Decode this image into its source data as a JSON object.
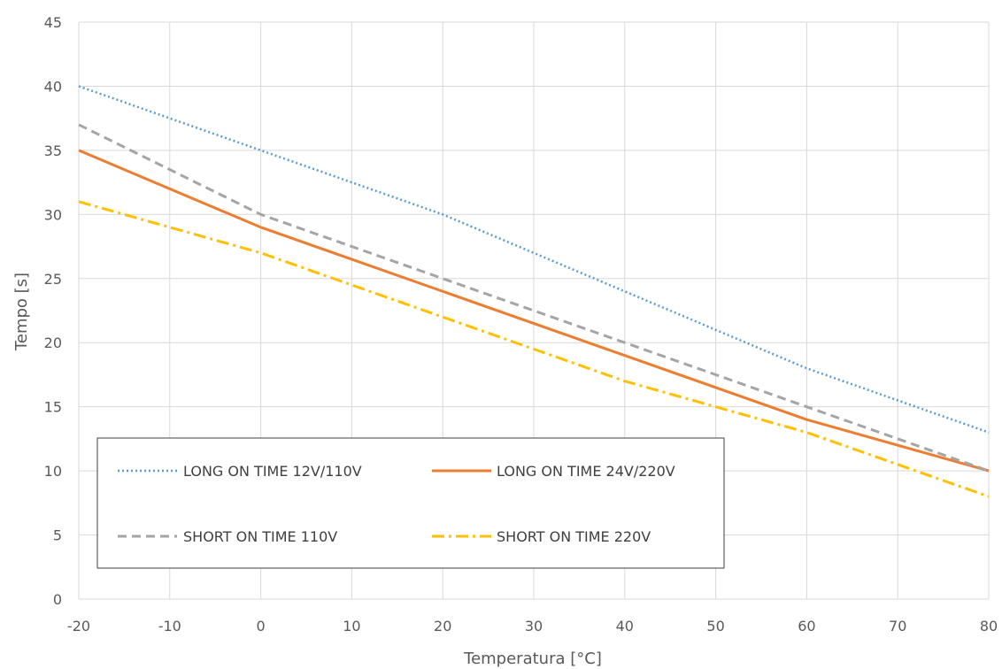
{
  "chart_data": {
    "type": "line",
    "title": "",
    "xlabel": "Temperatura [°C]",
    "ylabel": "Tempo [s]",
    "xlim": [
      -20,
      80
    ],
    "ylim": [
      0,
      45
    ],
    "x_ticks": [
      -20,
      -10,
      0,
      10,
      20,
      30,
      40,
      50,
      60,
      70,
      80
    ],
    "y_ticks": [
      0,
      5,
      10,
      15,
      20,
      25,
      30,
      35,
      40,
      45
    ],
    "x_tick_labels": [
      "-20",
      "-10",
      "0",
      "10",
      "20",
      "30",
      "40",
      "50",
      "60",
      "70",
      "80"
    ],
    "y_tick_labels": [
      "0",
      "5",
      "10",
      "15",
      "20",
      "25",
      "30",
      "35",
      "40",
      "45"
    ],
    "grid": true,
    "legend_placement": "bottom-left inside plot",
    "x": [
      -20,
      0,
      20,
      40,
      60,
      80
    ],
    "series": [
      {
        "name": "LONG ON TIME 12V/110V",
        "values": [
          40,
          35,
          30,
          24,
          18,
          13
        ],
        "color": "#5b9bd5",
        "dash": "dotted"
      },
      {
        "name": "LONG ON TIME 24V/220V",
        "values": [
          35,
          29,
          24,
          19,
          14,
          10
        ],
        "color": "#ed7d31",
        "dash": "solid"
      },
      {
        "name": "SHORT ON TIME 110V",
        "values": [
          37,
          30,
          25,
          20,
          15,
          10
        ],
        "color": "#a5a5a5",
        "dash": "dashed"
      },
      {
        "name": "SHORT ON TIME 220V",
        "values": [
          31,
          27,
          22,
          17,
          13,
          8
        ],
        "color": "#ffc000",
        "dash": "dashdot"
      }
    ]
  }
}
